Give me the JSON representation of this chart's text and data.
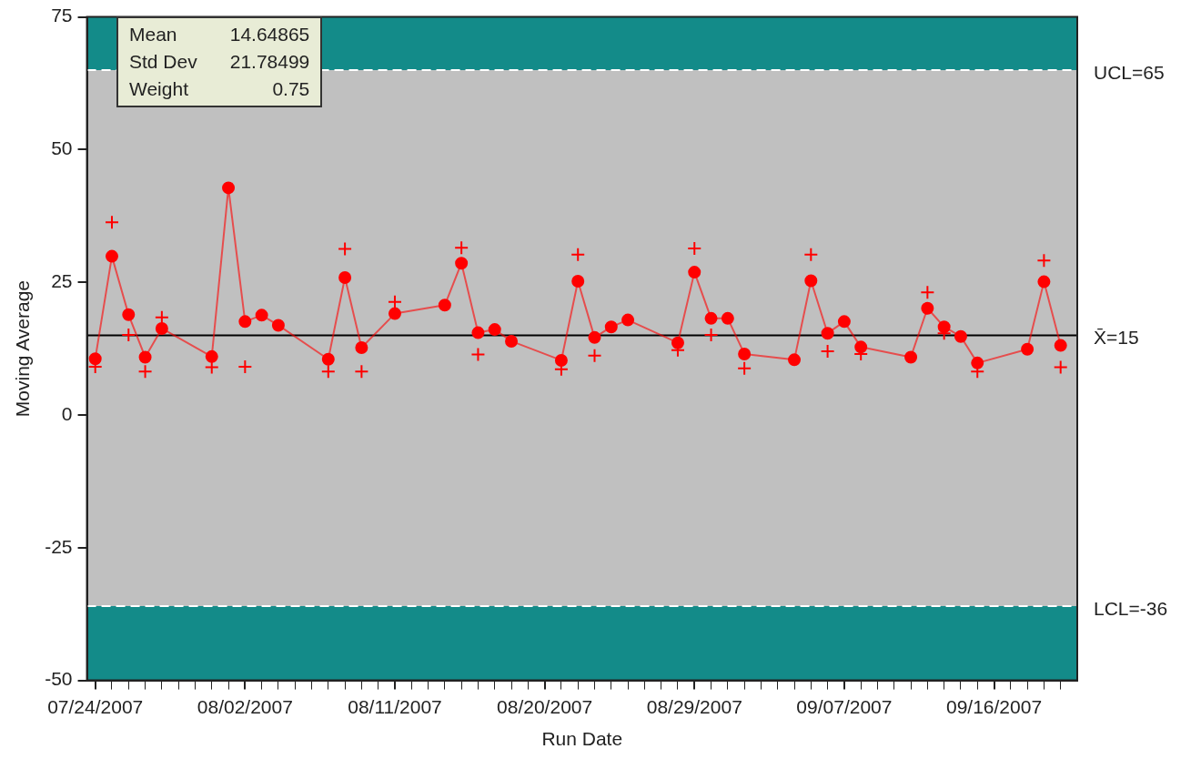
{
  "chart_data": {
    "type": "line",
    "xlabel": "Run Date",
    "ylabel": "Moving Average",
    "xlim": [
      "2007-07-23T12:00",
      "2007-09-21"
    ],
    "xticks": [
      {
        "value": "2007-07-24",
        "label": "07/24/2007"
      },
      {
        "value": "2007-07-25",
        "label": null
      },
      {
        "value": "2007-07-26",
        "label": null
      },
      {
        "value": "2007-07-27",
        "label": null
      },
      {
        "value": "2007-07-28",
        "label": null
      },
      {
        "value": "2007-07-29",
        "label": null
      },
      {
        "value": "2007-07-30",
        "label": null
      },
      {
        "value": "2007-07-31",
        "label": null
      },
      {
        "value": "2007-08-01",
        "label": null
      },
      {
        "value": "2007-08-02",
        "label": "08/02/2007"
      },
      {
        "value": "2007-08-03",
        "label": null
      },
      {
        "value": "2007-08-04",
        "label": null
      },
      {
        "value": "2007-08-05",
        "label": null
      },
      {
        "value": "2007-08-06",
        "label": null
      },
      {
        "value": "2007-08-07",
        "label": null
      },
      {
        "value": "2007-08-08",
        "label": null
      },
      {
        "value": "2007-08-09",
        "label": null
      },
      {
        "value": "2007-08-10",
        "label": null
      },
      {
        "value": "2007-08-11",
        "label": "08/11/2007"
      },
      {
        "value": "2007-08-12",
        "label": null
      },
      {
        "value": "2007-08-13",
        "label": null
      },
      {
        "value": "2007-08-14",
        "label": null
      },
      {
        "value": "2007-08-15",
        "label": null
      },
      {
        "value": "2007-08-16",
        "label": null
      },
      {
        "value": "2007-08-17",
        "label": null
      },
      {
        "value": "2007-08-18",
        "label": null
      },
      {
        "value": "2007-08-19",
        "label": null
      },
      {
        "value": "2007-08-20",
        "label": "08/20/2007"
      },
      {
        "value": "2007-08-21",
        "label": null
      },
      {
        "value": "2007-08-22",
        "label": null
      },
      {
        "value": "2007-08-23",
        "label": null
      },
      {
        "value": "2007-08-24",
        "label": null
      },
      {
        "value": "2007-08-25",
        "label": null
      },
      {
        "value": "2007-08-26",
        "label": null
      },
      {
        "value": "2007-08-27",
        "label": null
      },
      {
        "value": "2007-08-28",
        "label": null
      },
      {
        "value": "2007-08-29",
        "label": "08/29/2007"
      },
      {
        "value": "2007-08-30",
        "label": null
      },
      {
        "value": "2007-08-31",
        "label": null
      },
      {
        "value": "2007-09-01",
        "label": null
      },
      {
        "value": "2007-09-02",
        "label": null
      },
      {
        "value": "2007-09-03",
        "label": null
      },
      {
        "value": "2007-09-04",
        "label": null
      },
      {
        "value": "2007-09-05",
        "label": null
      },
      {
        "value": "2007-09-06",
        "label": null
      },
      {
        "value": "2007-09-07",
        "label": "09/07/2007"
      },
      {
        "value": "2007-09-08",
        "label": null
      },
      {
        "value": "2007-09-09",
        "label": null
      },
      {
        "value": "2007-09-10",
        "label": null
      },
      {
        "value": "2007-09-11",
        "label": null
      },
      {
        "value": "2007-09-12",
        "label": null
      },
      {
        "value": "2007-09-13",
        "label": null
      },
      {
        "value": "2007-09-14",
        "label": null
      },
      {
        "value": "2007-09-15",
        "label": null
      },
      {
        "value": "2007-09-16",
        "label": "09/16/2007"
      },
      {
        "value": "2007-09-17",
        "label": null
      },
      {
        "value": "2007-09-18",
        "label": null
      },
      {
        "value": "2007-09-19",
        "label": null
      },
      {
        "value": "2007-09-20",
        "label": null
      }
    ],
    "ylim": [
      -50,
      75
    ],
    "yticks": [
      -50,
      -25,
      0,
      25,
      50,
      75
    ],
    "grid": false,
    "legend": false,
    "x": [
      "2007-07-24",
      "2007-07-25",
      "2007-07-26",
      "2007-07-27",
      "2007-07-28",
      "2007-07-31",
      "2007-08-01",
      "2007-08-02",
      "2007-08-03",
      "2007-08-04",
      "2007-08-07",
      "2007-08-08",
      "2007-08-09",
      "2007-08-11",
      "2007-08-14",
      "2007-08-15",
      "2007-08-16",
      "2007-08-17",
      "2007-08-18",
      "2007-08-21",
      "2007-08-22",
      "2007-08-23",
      "2007-08-24",
      "2007-08-25",
      "2007-08-28",
      "2007-08-29",
      "2007-08-30",
      "2007-08-31",
      "2007-09-01",
      "2007-09-04",
      "2007-09-05",
      "2007-09-06",
      "2007-09-07",
      "2007-09-08",
      "2007-09-11",
      "2007-09-12",
      "2007-09-13",
      "2007-09-14",
      "2007-09-15",
      "2007-09-18",
      "2007-09-19",
      "2007-09-20"
    ],
    "series": [
      {
        "color": "#ff0000",
        "marker": "circle",
        "line_style": "solid",
        "values": [
          10.6,
          29.9,
          18.9,
          10.9,
          16.3,
          11.0,
          42.8,
          17.6,
          18.8,
          16.9,
          10.5,
          25.9,
          12.7,
          19.1,
          20.7,
          28.6,
          15.5,
          16.1,
          13.9,
          10.3,
          25.2,
          14.6,
          16.6,
          17.9,
          13.6,
          26.9,
          18.2,
          18.2,
          11.5,
          10.4,
          25.3,
          15.4,
          17.6,
          12.8,
          10.9,
          20.1,
          16.6,
          14.8,
          9.8,
          12.4,
          25.1,
          13.1
        ]
      },
      {
        "type": "scatter",
        "color": "#ff0000",
        "marker": "cross",
        "values": [
          9.1,
          36.3,
          15.1,
          8.2,
          18.4,
          9.0,
          null,
          9.1,
          null,
          null,
          8.2,
          31.3,
          8.2,
          21.3,
          null,
          31.5,
          11.4,
          null,
          null,
          8.6,
          30.2,
          11.2,
          null,
          null,
          12.2,
          31.4,
          15.1,
          null,
          8.8,
          null,
          30.2,
          12.0,
          null,
          11.5,
          null,
          23.1,
          15.4,
          null,
          8.2,
          null,
          29.1,
          9.0
        ]
      }
    ],
    "bands": [
      {
        "axis": "y",
        "from": 65,
        "to": 75,
        "color": "#138b89"
      },
      {
        "axis": "y",
        "from": -50,
        "to": -36,
        "color": "#138b89"
      }
    ],
    "ref_lines": [
      {
        "axis": "y",
        "value": 65,
        "label": "UCL=65",
        "color": "#ffffff",
        "line_style": "dashed"
      },
      {
        "axis": "y",
        "value": 15,
        "label": "X̄=15",
        "color": "#000000",
        "line_style": "solid"
      },
      {
        "axis": "y",
        "value": -36,
        "label": "LCL=-36",
        "color": "#ffffff",
        "line_style": "dashed"
      }
    ],
    "annotations": [
      "Mean",
      "14.64865",
      "Std Dev",
      "21.78499",
      "Weight",
      "0.75"
    ]
  }
}
